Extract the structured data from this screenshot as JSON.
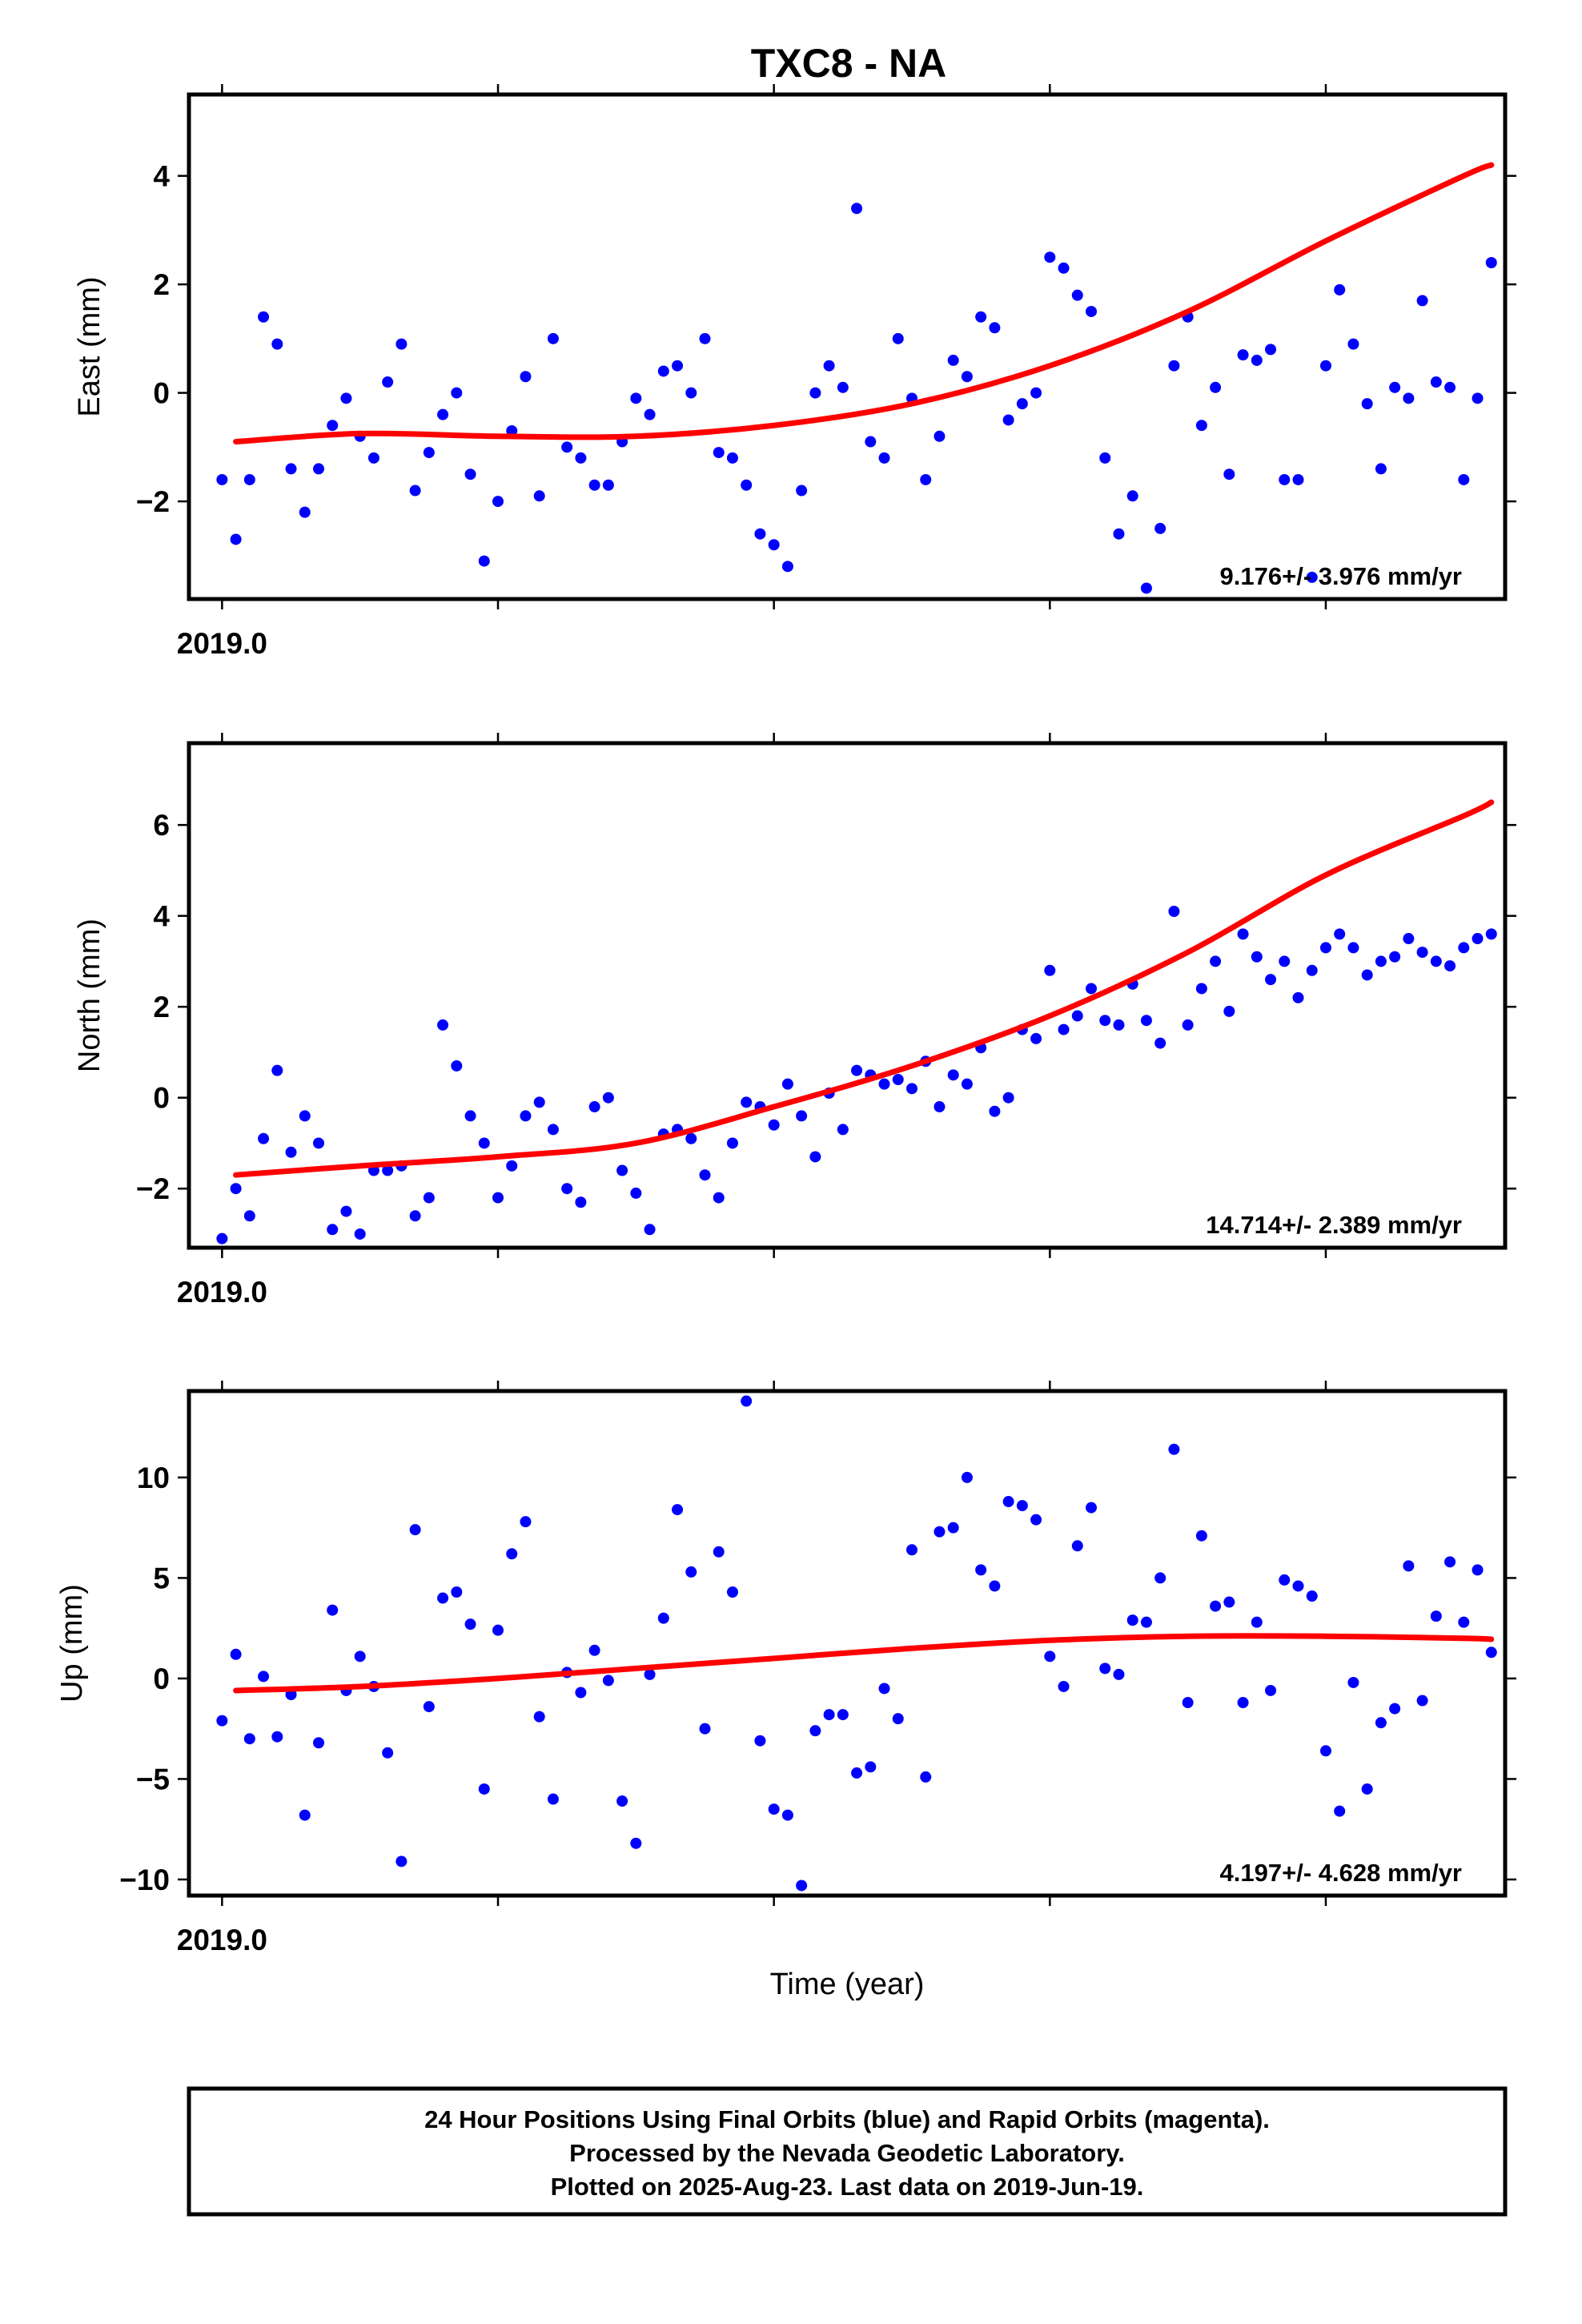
{
  "title": "TXC8 - NA",
  "xlabel": "Time (year)",
  "footer": {
    "line1": "24 Hour Positions Using Final Orbits (blue) and Rapid Orbits (magenta).",
    "line2": "Processed by the Nevada Geodetic Laboratory.",
    "line3": "Plotted on 2025-Aug-23. Last data on 2019-Jun-19."
  },
  "colors": {
    "final_orbits": "#0000ff",
    "fit": "#ff0000",
    "frame": "#000000"
  },
  "chart_data": [
    {
      "type": "scatter",
      "ylabel": "East (mm)",
      "rate_label": "9.176+/- 3.976 mm/yr",
      "x_tick_label": "2019.0",
      "xlim": [
        2018.988,
        2019.465
      ],
      "ylim": [
        -3.8,
        5.5
      ],
      "yticks": [
        -2,
        0,
        2,
        4
      ],
      "ytick_labels": [
        "−2",
        "0",
        "2",
        "4"
      ],
      "x": [
        2019.0,
        2019.005,
        2019.01,
        2019.015,
        2019.02,
        2019.025,
        2019.03,
        2019.035,
        2019.04,
        2019.045,
        2019.05,
        2019.055,
        2019.06,
        2019.065,
        2019.07,
        2019.075,
        2019.08,
        2019.085,
        2019.09,
        2019.095,
        2019.1,
        2019.105,
        2019.11,
        2019.115,
        2019.12,
        2019.125,
        2019.13,
        2019.135,
        2019.14,
        2019.145,
        2019.15,
        2019.155,
        2019.16,
        2019.165,
        2019.17,
        2019.175,
        2019.18,
        2019.185,
        2019.19,
        2019.195,
        2019.2,
        2019.205,
        2019.21,
        2019.215,
        2019.22,
        2019.225,
        2019.23,
        2019.235,
        2019.24,
        2019.245,
        2019.25,
        2019.255,
        2019.26,
        2019.265,
        2019.27,
        2019.275,
        2019.28,
        2019.285,
        2019.29,
        2019.295,
        2019.3,
        2019.305,
        2019.31,
        2019.315,
        2019.32,
        2019.325,
        2019.33,
        2019.335,
        2019.34,
        2019.345,
        2019.35,
        2019.355,
        2019.36,
        2019.365,
        2019.37,
        2019.375,
        2019.38,
        2019.385,
        2019.39,
        2019.395,
        2019.4,
        2019.405,
        2019.41,
        2019.415,
        2019.42,
        2019.425,
        2019.43,
        2019.435,
        2019.44,
        2019.445,
        2019.45,
        2019.455,
        2019.46
      ],
      "y": [
        -1.6,
        -2.7,
        -1.6,
        1.4,
        0.9,
        -1.4,
        -2.2,
        -1.4,
        -0.6,
        -0.1,
        -0.8,
        -1.2,
        0.2,
        0.9,
        -1.8,
        -1.1,
        -0.4,
        0.0,
        -1.5,
        -3.1,
        -2.0,
        -0.7,
        0.3,
        -1.9,
        1.0,
        -1.0,
        -1.2,
        -1.7,
        -1.7,
        -0.9,
        -0.1,
        -0.4,
        0.4,
        0.5,
        0.0,
        1.0,
        -1.1,
        -1.2,
        -1.7,
        -2.6,
        -2.8,
        -3.2,
        -1.8,
        0.0,
        0.5,
        0.1,
        3.4,
        -0.9,
        -1.2,
        1.0,
        -0.1,
        -1.6,
        -0.8,
        0.6,
        0.3,
        1.4,
        1.2,
        -0.5,
        -0.2,
        0.0,
        2.5,
        2.3,
        1.8,
        1.5,
        -1.2,
        -2.6,
        -1.9,
        -3.6,
        -2.5,
        0.5,
        1.4,
        -0.6,
        0.1,
        -1.5,
        0.7,
        0.6,
        0.8,
        -1.6,
        -1.6,
        -3.4,
        0.5,
        1.9,
        0.9,
        -0.2,
        -1.4,
        0.1,
        -0.1,
        1.7,
        0.2,
        0.1,
        -1.6,
        -0.1,
        2.4
      ],
      "fit_x": [
        2019.005,
        2019.05,
        2019.1,
        2019.15,
        2019.2,
        2019.25,
        2019.3,
        2019.35,
        2019.4,
        2019.45,
        2019.46
      ],
      "fit_y": [
        -0.9,
        -0.75,
        -0.8,
        -0.8,
        -0.6,
        -0.2,
        0.5,
        1.5,
        2.8,
        4.0,
        4.2
      ]
    },
    {
      "type": "scatter",
      "ylabel": "North (mm)",
      "rate_label": "14.714+/- 2.389 mm/yr",
      "x_tick_label": "2019.0",
      "xlim": [
        2018.988,
        2019.465
      ],
      "ylim": [
        -3.3,
        7.8
      ],
      "yticks": [
        -2,
        0,
        2,
        4,
        6
      ],
      "ytick_labels": [
        "−2",
        "0",
        "2",
        "4",
        "6"
      ],
      "x": [
        2019.0,
        2019.005,
        2019.01,
        2019.015,
        2019.02,
        2019.025,
        2019.03,
        2019.035,
        2019.04,
        2019.045,
        2019.05,
        2019.055,
        2019.06,
        2019.065,
        2019.07,
        2019.075,
        2019.08,
        2019.085,
        2019.09,
        2019.095,
        2019.1,
        2019.105,
        2019.11,
        2019.115,
        2019.12,
        2019.125,
        2019.13,
        2019.135,
        2019.14,
        2019.145,
        2019.15,
        2019.155,
        2019.16,
        2019.165,
        2019.17,
        2019.175,
        2019.18,
        2019.185,
        2019.19,
        2019.195,
        2019.2,
        2019.205,
        2019.21,
        2019.215,
        2019.22,
        2019.225,
        2019.23,
        2019.235,
        2019.24,
        2019.245,
        2019.25,
        2019.255,
        2019.26,
        2019.265,
        2019.27,
        2019.275,
        2019.28,
        2019.285,
        2019.29,
        2019.295,
        2019.3,
        2019.305,
        2019.31,
        2019.315,
        2019.32,
        2019.325,
        2019.33,
        2019.335,
        2019.34,
        2019.345,
        2019.35,
        2019.355,
        2019.36,
        2019.365,
        2019.37,
        2019.375,
        2019.38,
        2019.385,
        2019.39,
        2019.395,
        2019.4,
        2019.405,
        2019.41,
        2019.415,
        2019.42,
        2019.425,
        2019.43,
        2019.435,
        2019.44,
        2019.445,
        2019.45,
        2019.455,
        2019.46
      ],
      "y": [
        -3.1,
        -2.0,
        -2.6,
        -0.9,
        0.6,
        -1.2,
        -0.4,
        -1.0,
        -2.9,
        -2.5,
        -3.0,
        -1.6,
        -1.6,
        -1.5,
        -2.6,
        -2.2,
        1.6,
        0.7,
        -0.4,
        -1.0,
        -2.2,
        -1.5,
        -0.4,
        -0.1,
        -0.7,
        -2.0,
        -2.3,
        -0.2,
        0.0,
        -1.6,
        -2.1,
        -2.9,
        -0.8,
        -0.7,
        -0.9,
        -1.7,
        -2.2,
        -1.0,
        -0.1,
        -0.2,
        -0.6,
        0.3,
        -0.4,
        -1.3,
        0.1,
        -0.7,
        0.6,
        0.5,
        0.3,
        0.4,
        0.2,
        0.8,
        -0.2,
        0.5,
        0.3,
        1.1,
        -0.3,
        0.0,
        1.5,
        1.3,
        2.8,
        1.5,
        1.8,
        2.4,
        1.7,
        1.6,
        2.5,
        1.7,
        1.2,
        4.1,
        1.6,
        2.4,
        3.0,
        1.9,
        3.6,
        3.1,
        2.6,
        3.0,
        2.2,
        2.8,
        3.3,
        3.6,
        3.3,
        2.7,
        3.0,
        3.1,
        3.5,
        3.2,
        3.0,
        2.9,
        3.3,
        3.5,
        3.6
      ],
      "fit_x": [
        2019.005,
        2019.05,
        2019.1,
        2019.15,
        2019.2,
        2019.25,
        2019.3,
        2019.35,
        2019.4,
        2019.45,
        2019.46
      ],
      "fit_y": [
        -1.7,
        -1.5,
        -1.3,
        -1.0,
        -0.2,
        0.7,
        1.8,
        3.2,
        4.9,
        6.2,
        6.5
      ]
    },
    {
      "type": "scatter",
      "ylabel": "Up (mm)",
      "rate_label": "4.197+/- 4.628 mm/yr",
      "x_tick_label": "2019.0",
      "xlim": [
        2018.988,
        2019.465
      ],
      "ylim": [
        -10.8,
        14.3
      ],
      "yticks": [
        -10,
        -5,
        0,
        5,
        10
      ],
      "ytick_labels": [
        "−10",
        "−5",
        "0",
        "5",
        "10"
      ],
      "x": [
        2019.0,
        2019.005,
        2019.01,
        2019.015,
        2019.02,
        2019.025,
        2019.03,
        2019.035,
        2019.04,
        2019.045,
        2019.05,
        2019.055,
        2019.06,
        2019.065,
        2019.07,
        2019.075,
        2019.08,
        2019.085,
        2019.09,
        2019.095,
        2019.1,
        2019.105,
        2019.11,
        2019.115,
        2019.12,
        2019.125,
        2019.13,
        2019.135,
        2019.14,
        2019.145,
        2019.15,
        2019.155,
        2019.16,
        2019.165,
        2019.17,
        2019.175,
        2019.18,
        2019.185,
        2019.19,
        2019.195,
        2019.2,
        2019.205,
        2019.21,
        2019.215,
        2019.22,
        2019.225,
        2019.23,
        2019.235,
        2019.24,
        2019.245,
        2019.25,
        2019.255,
        2019.26,
        2019.265,
        2019.27,
        2019.275,
        2019.28,
        2019.285,
        2019.29,
        2019.295,
        2019.3,
        2019.305,
        2019.31,
        2019.315,
        2019.32,
        2019.325,
        2019.33,
        2019.335,
        2019.34,
        2019.345,
        2019.35,
        2019.355,
        2019.36,
        2019.365,
        2019.37,
        2019.375,
        2019.38,
        2019.385,
        2019.39,
        2019.395,
        2019.4,
        2019.405,
        2019.41,
        2019.415,
        2019.42,
        2019.425,
        2019.43,
        2019.435,
        2019.44,
        2019.445,
        2019.45,
        2019.455,
        2019.46
      ],
      "y": [
        -2.1,
        1.2,
        -3.0,
        0.1,
        -2.9,
        -0.8,
        -6.8,
        -3.2,
        3.4,
        -0.6,
        1.1,
        -0.4,
        -3.7,
        -9.1,
        7.4,
        -1.4,
        4.0,
        4.3,
        2.7,
        -5.5,
        2.4,
        6.2,
        7.8,
        -1.9,
        -6.0,
        0.3,
        -0.7,
        1.4,
        -0.1,
        -6.1,
        -8.2,
        0.2,
        3.0,
        8.4,
        5.3,
        -2.5,
        6.3,
        4.3,
        13.8,
        -3.1,
        -6.5,
        -6.8,
        -10.3,
        -2.6,
        -1.8,
        -1.8,
        -4.7,
        -4.4,
        -0.5,
        -2.0,
        6.4,
        -4.9,
        7.3,
        7.5,
        10.0,
        5.4,
        4.6,
        8.8,
        8.6,
        7.9,
        1.1,
        -0.4,
        6.6,
        8.5,
        0.5,
        0.2,
        2.9,
        2.8,
        5.0,
        11.4,
        -1.2,
        7.1,
        3.6,
        3.8,
        -1.2,
        2.8,
        -0.6,
        4.9,
        4.6,
        4.1,
        -3.6,
        -6.6,
        -0.2,
        -5.5,
        -2.2,
        -1.5,
        5.6,
        -1.1,
        3.1,
        5.8,
        2.8,
        5.4,
        1.3
      ],
      "fit_x": [
        2019.005,
        2019.05,
        2019.1,
        2019.15,
        2019.2,
        2019.25,
        2019.3,
        2019.35,
        2019.4,
        2019.45,
        2019.46
      ],
      "fit_y": [
        -0.6,
        -0.4,
        0.0,
        0.5,
        1.0,
        1.5,
        1.9,
        2.1,
        2.1,
        2.0,
        1.95
      ]
    }
  ]
}
